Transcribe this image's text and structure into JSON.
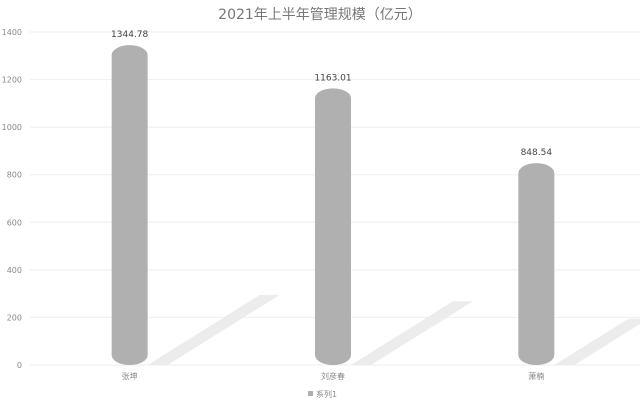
{
  "chart_data": {
    "type": "bar",
    "title": "2021年上半年管理规模（亿元）",
    "categories": [
      "张坤",
      "刘彦春",
      "萧楠"
    ],
    "series": [
      {
        "name": "系列1",
        "values": [
          1344.78,
          1163.01,
          848.54
        ]
      }
    ],
    "data_labels": [
      "1344.78",
      "1163.01",
      "848.54"
    ],
    "ylim": [
      0,
      1400
    ],
    "yticks": [
      0,
      200,
      400,
      600,
      800,
      1000,
      1200,
      1400
    ],
    "grid": true,
    "legend": "bottom",
    "bar_color": "#b0b0b0",
    "shadow_color": "#ececec"
  }
}
